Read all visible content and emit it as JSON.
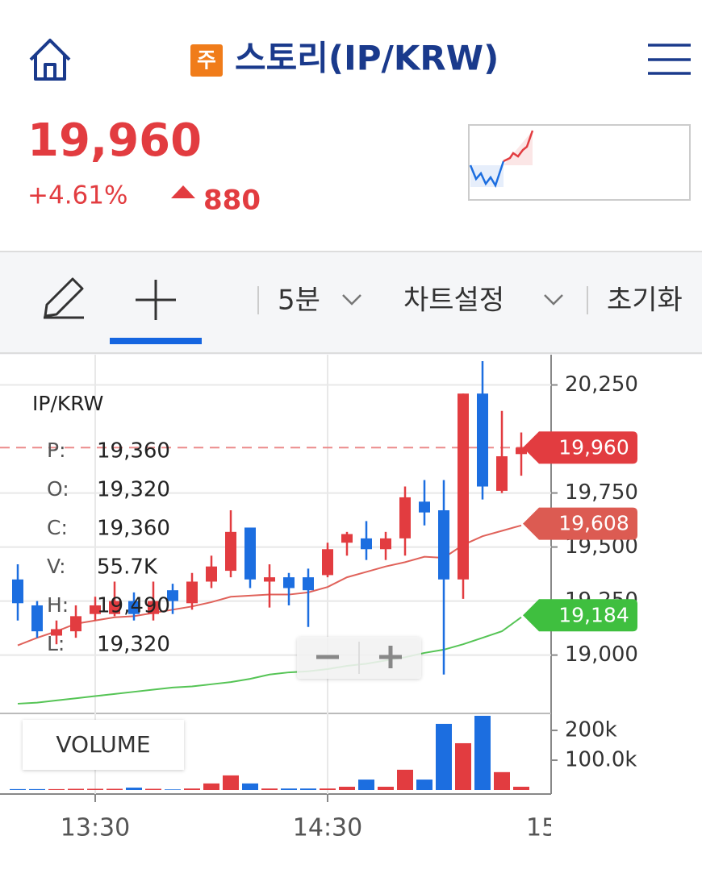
{
  "header": {
    "badge": "주",
    "title": "스토리(IP/KRW)"
  },
  "quote": {
    "price": "19,960",
    "change_pct": "+4.61%",
    "change": "880"
  },
  "toolbar": {
    "interval": "5분",
    "settings": "차트설정",
    "reset": "초기화"
  },
  "legend": {
    "symbol": "IP/KRW",
    "rows": [
      {
        "key": "P:",
        "value": "19,360"
      },
      {
        "key": "O:",
        "value": "19,320"
      },
      {
        "key": "C:",
        "value": "19,360"
      },
      {
        "key": "V:",
        "value": "55.7K"
      },
      {
        "key": "H:",
        "value": "19,490"
      },
      {
        "key": "L:",
        "value": "19,320"
      }
    ]
  },
  "volume_button": "VOLUME",
  "chart_data": {
    "type": "candlestick",
    "categories": [
      null,
      null,
      null,
      null,
      "13:30",
      null,
      null,
      null,
      null,
      null,
      null,
      null,
      null,
      null,
      null,
      null,
      "14:30",
      null,
      null,
      null,
      null,
      null,
      null,
      null,
      null,
      null,
      null
    ],
    "open": [
      19350,
      19230,
      19090,
      19110,
      19190,
      19190,
      19250,
      19190,
      19300,
      19240,
      19340,
      19390,
      19590,
      19340,
      19360,
      19360,
      19370,
      19520,
      19540,
      19490,
      19540,
      19710,
      19670,
      19350,
      20210,
      19760,
      19930
    ],
    "high": [
      19420,
      19250,
      19160,
      19230,
      19270,
      19340,
      19290,
      19340,
      19330,
      19380,
      19460,
      19670,
      19590,
      19420,
      19380,
      19400,
      19520,
      19570,
      19620,
      19570,
      19780,
      19810,
      19810,
      20210,
      20360,
      20130,
      20030
    ],
    "low": [
      19160,
      19080,
      19050,
      19080,
      19160,
      19180,
      19160,
      19160,
      19190,
      19210,
      19310,
      19360,
      19310,
      19220,
      19230,
      19130,
      19360,
      19460,
      19440,
      19440,
      19460,
      19600,
      18910,
      19260,
      19720,
      19750,
      19830
    ],
    "close": [
      19240,
      19110,
      19120,
      19180,
      19230,
      19250,
      19190,
      19250,
      19250,
      19340,
      19410,
      19570,
      19350,
      19360,
      19310,
      19300,
      19490,
      19560,
      19490,
      19540,
      19730,
      19660,
      19350,
      20210,
      19780,
      19920,
      19960
    ],
    "up_color": "#e23c40",
    "down_color": "#1c6ee0",
    "ylim": [
      18730,
      20390
    ],
    "yticks": [
      {
        "value": 20250,
        "label": "20,250"
      },
      {
        "value": 19750,
        "label": "19,750"
      },
      {
        "value": 19500,
        "label": "19,500"
      },
      {
        "value": 19250,
        "label": "19,250"
      },
      {
        "value": 19000,
        "label": "19,000"
      }
    ],
    "grid": true,
    "moving_averages": [
      {
        "color": "#e0625a",
        "values": [
          19045,
          19080,
          19110,
          19145,
          19160,
          19175,
          19180,
          19195,
          19210,
          19225,
          19245,
          19270,
          19275,
          19280,
          19280,
          19290,
          19315,
          19360,
          19385,
          19410,
          19430,
          19455,
          19450,
          19510,
          19550,
          19575,
          19600
        ]
      },
      {
        "color": "#55c455",
        "values": [
          18775,
          18780,
          18790,
          18800,
          18810,
          18820,
          18830,
          18840,
          18850,
          18855,
          18865,
          18875,
          18890,
          18910,
          18920,
          18925,
          18935,
          18950,
          18960,
          18975,
          18990,
          19010,
          19025,
          19050,
          19080,
          19110,
          19175
        ]
      }
    ],
    "price_tags": [
      {
        "value": 19960,
        "label": "19,960",
        "color": "#e23c40",
        "dashed": true
      },
      {
        "value": 19608,
        "label": "19,608",
        "color": "#dc5b52"
      },
      {
        "value": 19184,
        "label": "19,184",
        "color": "#3fbf3f"
      }
    ],
    "volume": {
      "values": [
        3000,
        3000,
        3000,
        4000,
        4000,
        4000,
        8000,
        4000,
        2000,
        5000,
        22000,
        49000,
        22000,
        5000,
        5000,
        5000,
        5000,
        11000,
        35000,
        11000,
        68000,
        35000,
        222000,
        157000,
        249000,
        60000,
        11000
      ],
      "ylim": [
        0,
        257000
      ],
      "yticks": [
        {
          "value": 200000,
          "label": "200k"
        },
        {
          "value": 100000,
          "label": "100.0k"
        }
      ]
    },
    "xtick_cut": "15"
  }
}
